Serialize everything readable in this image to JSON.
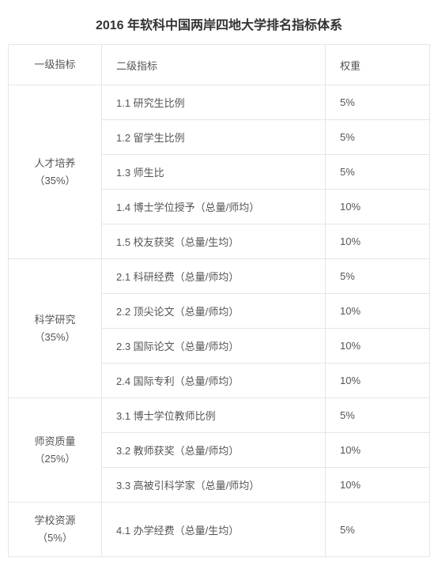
{
  "title": "2016 年软科中国两岸四地大学排名指标体系",
  "headers": {
    "level1": "一级指标",
    "level2": "二级指标",
    "weight": "权重"
  },
  "colors": {
    "border": "#e6e6e6",
    "text": "#555555",
    "title": "#333333",
    "background": "#ffffff"
  },
  "font": {
    "title_size_pt": 12,
    "body_size_pt": 10,
    "family": "Microsoft YaHei"
  },
  "groups": [
    {
      "label": "人才培养<br>（35%）",
      "rows": [
        {
          "label": "1.1 研究生比例",
          "weight": "5%"
        },
        {
          "label": "1.2 留学生比例",
          "weight": "5%"
        },
        {
          "label": "1.3 师生比",
          "weight": "5%"
        },
        {
          "label": "1.4 博士学位授予（总量/师均）",
          "weight": "10%"
        },
        {
          "label": "1.5 校友获奖（总量/生均）",
          "weight": "10%"
        }
      ]
    },
    {
      "label": "科学研究<br>（35%）",
      "rows": [
        {
          "label": "2.1 科研经费（总量/师均）",
          "weight": "5%"
        },
        {
          "label": "2.2 顶尖论文（总量/师均）",
          "weight": "10%"
        },
        {
          "label": "2.3 国际论文（总量/师均）",
          "weight": "10%"
        },
        {
          "label": "2.4 国际专利（总量/师均）",
          "weight": "10%"
        }
      ]
    },
    {
      "label": "师资质量<br>（25%）",
      "rows": [
        {
          "label": "3.1 博士学位教师比例",
          "weight": "5%"
        },
        {
          "label": "3.2 教师获奖（总量/师均）",
          "weight": "10%"
        },
        {
          "label": "3.3 高被引科学家（总量/师均）",
          "weight": "10%"
        }
      ]
    },
    {
      "label": "学校资源<br>（5%）",
      "rows": [
        {
          "label": "4.1 办学经费（总量/生均）",
          "weight": "5%"
        }
      ]
    }
  ]
}
